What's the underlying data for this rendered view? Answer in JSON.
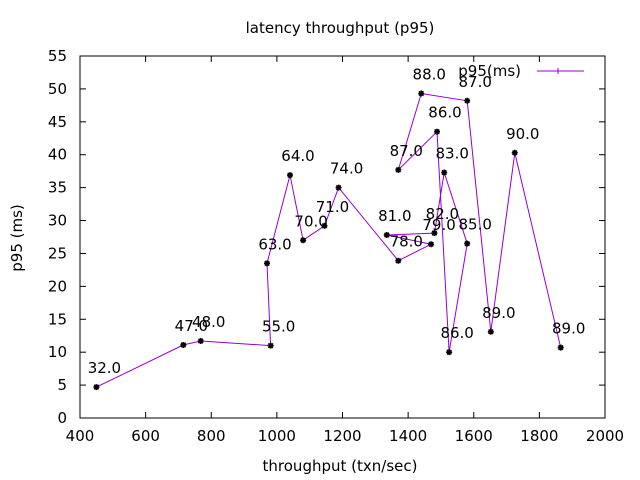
{
  "chart_data": {
    "type": "line",
    "title": "latency throughput (p95)",
    "xlabel": "throughput (txn/sec)",
    "ylabel": "p95 (ms)",
    "xlim": [
      400,
      2000
    ],
    "ylim": [
      0,
      55
    ],
    "xticks": [
      400,
      600,
      800,
      1000,
      1200,
      1400,
      1600,
      1800,
      2000
    ],
    "yticks": [
      0,
      5,
      10,
      15,
      20,
      25,
      30,
      35,
      40,
      45,
      50,
      55
    ],
    "grid": false,
    "legend_position": "top-right",
    "series": [
      {
        "name": "p95(ms)",
        "color": "#9400d3",
        "marker_color": "#000000",
        "points": [
          {
            "x": 450,
            "y": 4.7,
            "label": "32.0"
          },
          {
            "x": 715,
            "y": 11.1,
            "label": "47.0"
          },
          {
            "x": 768,
            "y": 11.7,
            "label": "48.0"
          },
          {
            "x": 981,
            "y": 11.0,
            "label": "55.0"
          },
          {
            "x": 970,
            "y": 23.5,
            "label": "63.0"
          },
          {
            "x": 1040,
            "y": 36.9,
            "label": "64.0"
          },
          {
            "x": 1080,
            "y": 27.0,
            "label": "70.0"
          },
          {
            "x": 1145,
            "y": 29.2,
            "label": "71.0"
          },
          {
            "x": 1188,
            "y": 35.0,
            "label": "74.0"
          },
          {
            "x": 1370,
            "y": 23.9,
            "label": "78.0"
          },
          {
            "x": 1470,
            "y": 26.4,
            "label": "79.0"
          },
          {
            "x": 1335,
            "y": 27.8,
            "label": "81.0"
          },
          {
            "x": 1480,
            "y": 28.1,
            "label": "82.0"
          },
          {
            "x": 1510,
            "y": 37.3,
            "label": "83.0"
          },
          {
            "x": 1580,
            "y": 26.5,
            "label": "85.0"
          },
          {
            "x": 1525,
            "y": 10.0,
            "label": "86.0"
          },
          {
            "x": 1488,
            "y": 43.5,
            "label": "86.0"
          },
          {
            "x": 1370,
            "y": 37.7,
            "label": "87.0"
          },
          {
            "x": 1440,
            "y": 49.3,
            "label": "88.0"
          },
          {
            "x": 1580,
            "y": 48.2,
            "label": "87.0"
          },
          {
            "x": 1652,
            "y": 13.1,
            "label": "89.0"
          },
          {
            "x": 1725,
            "y": 40.3,
            "label": "90.0"
          },
          {
            "x": 1865,
            "y": 10.7,
            "label": "89.0"
          }
        ]
      }
    ]
  }
}
